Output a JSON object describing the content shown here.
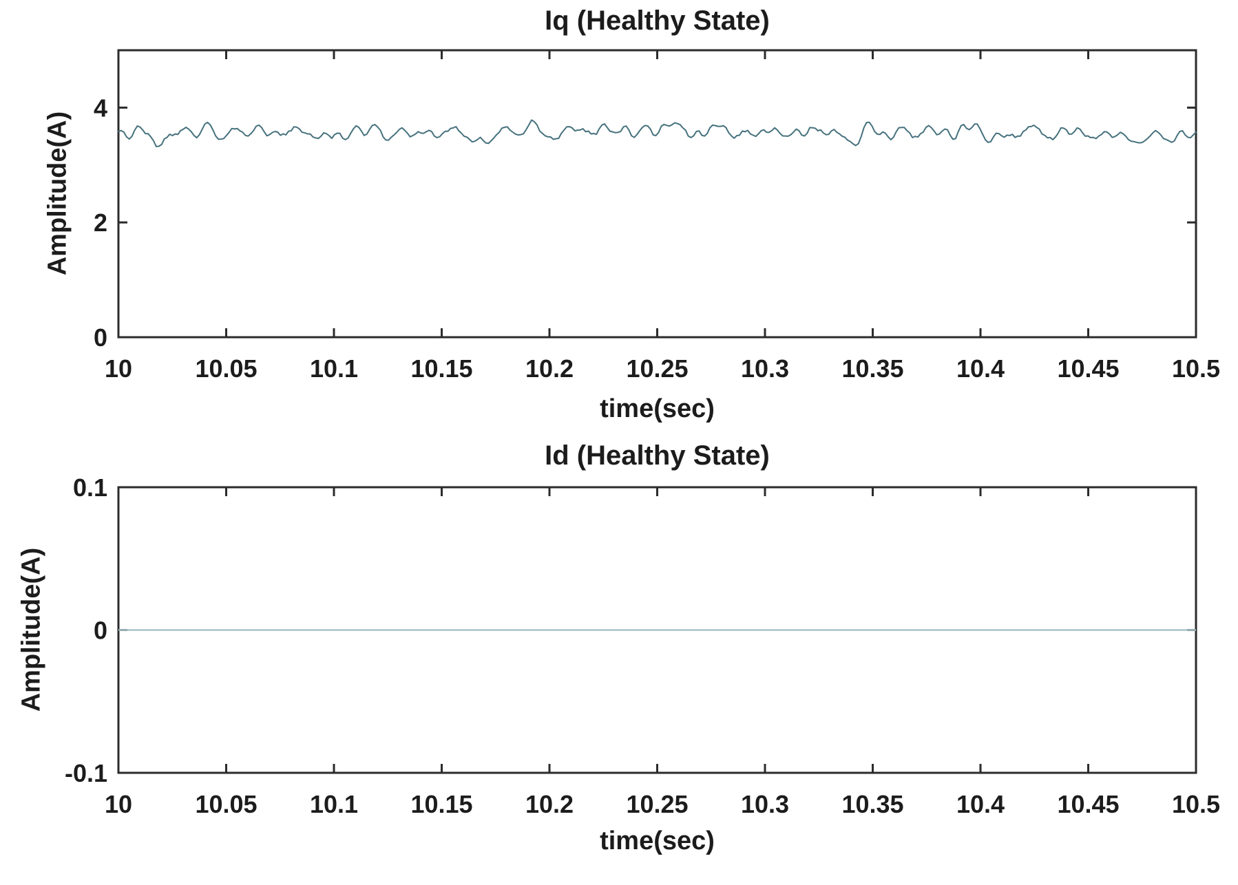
{
  "figure": {
    "background": "#ffffff",
    "axis_color": "#2b2b2b",
    "text_color": "#1c1c1c"
  },
  "chart_data": [
    {
      "type": "line",
      "title": "Iq (Healthy State)",
      "xlabel": "time(sec)",
      "ylabel": "Amplitude(A)",
      "xlim": [
        10,
        10.5
      ],
      "ylim": [
        0,
        5
      ],
      "xtick_labels": [
        "10",
        "10.05",
        "10.1",
        "10.15",
        "10.2",
        "10.25",
        "10.3",
        "10.35",
        "10.4",
        "10.45",
        "10.5"
      ],
      "ytick_labels": [
        "0",
        "2",
        "4"
      ],
      "grid": false,
      "legend": null,
      "series": [
        {
          "name": "Iq",
          "description": "stationary noisy q-axis current, random measurement noise around a constant mean",
          "mean": 3.55,
          "peak_to_peak": 0.3,
          "n_points": 400,
          "seed": 7,
          "color": "#45717d",
          "line_width": 2
        }
      ]
    },
    {
      "type": "line",
      "title": "Id (Healthy State)",
      "xlabel": "time(sec)",
      "ylabel": "Amplitude(A)",
      "xlim": [
        10,
        10.5
      ],
      "ylim": [
        -0.1,
        0.1
      ],
      "xtick_labels": [
        "10",
        "10.05",
        "10.1",
        "10.15",
        "10.2",
        "10.25",
        "10.3",
        "10.35",
        "10.4",
        "10.45",
        "10.5"
      ],
      "ytick_labels": [
        "-0.1",
        "0",
        "0.1"
      ],
      "grid": false,
      "legend": null,
      "series": [
        {
          "name": "Id",
          "description": "constant d-axis current",
          "constant_value": 0,
          "color": "#a9c2ca",
          "line_width": 2.5
        }
      ]
    }
  ]
}
